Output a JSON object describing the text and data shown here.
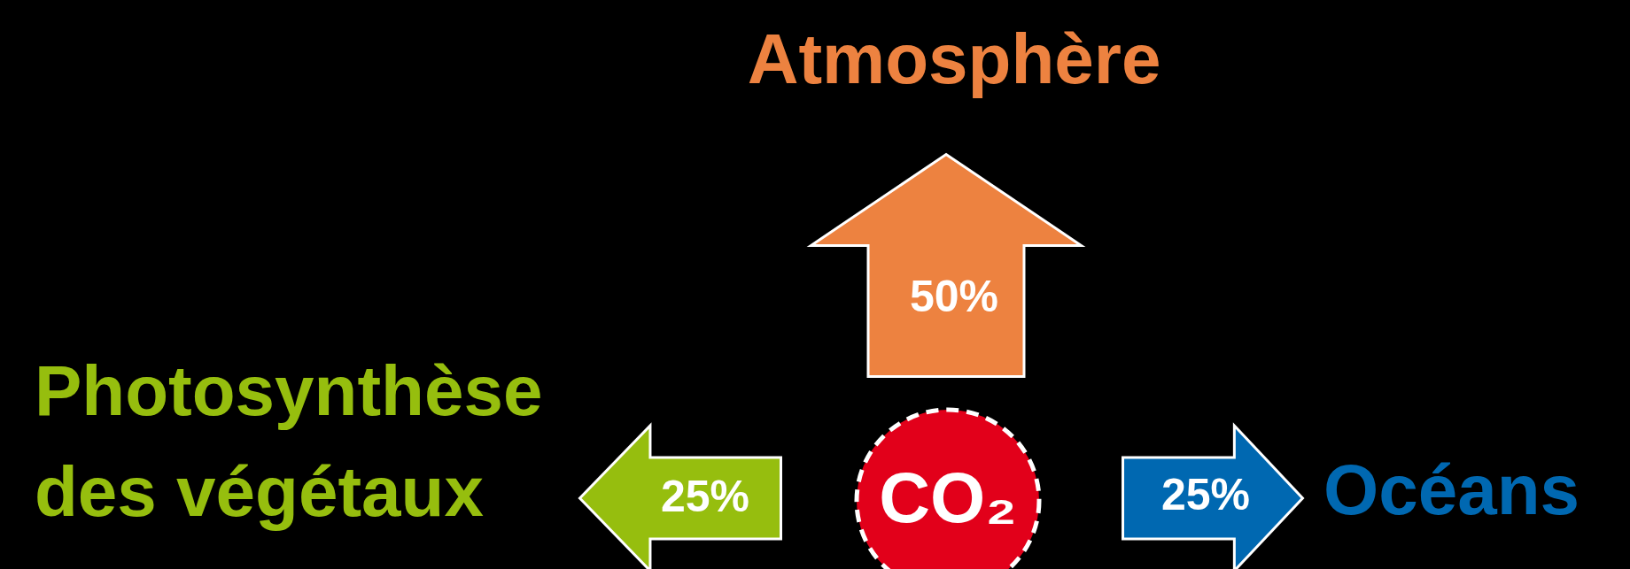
{
  "chart_data": {
    "type": "other",
    "categories": [
      "Atmosphère",
      "Photosynthèse des végétaux",
      "Océans"
    ],
    "values": [
      50,
      25,
      25
    ],
    "value_labels": [
      "50%",
      "25%",
      "25%"
    ],
    "colors": [
      "#ed8240",
      "#96be0e",
      "#0068b1"
    ],
    "annotations": [
      "CO₂"
    ]
  }
}
